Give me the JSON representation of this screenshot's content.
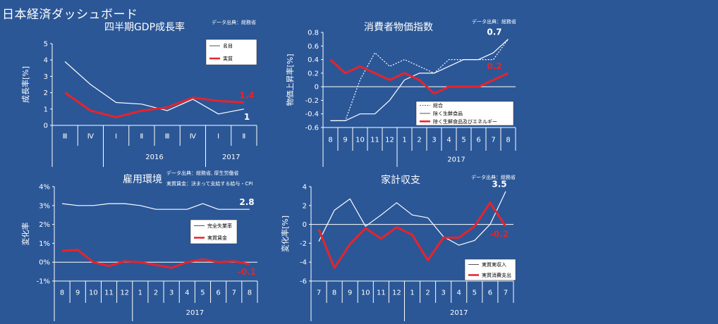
{
  "dashboard": {
    "title": "日本経済ダッシュボード"
  },
  "colors": {
    "background": "#2b5797",
    "series_white": "#ffffff",
    "series_red": "#e8232a"
  },
  "chart_data": [
    {
      "type": "line",
      "title": "四半期GDP成長率",
      "source": "データ出典：総務省",
      "source2": "",
      "ylabel": "成長率[%]",
      "categories": [
        "Ⅲ",
        "Ⅳ",
        "Ⅰ",
        "Ⅱ",
        "Ⅲ",
        "Ⅳ",
        "Ⅰ",
        "Ⅱ"
      ],
      "year_groups": [
        {
          "label": "2016",
          "start": 2,
          "end": 6
        },
        {
          "label": "2017",
          "start": 6,
          "end": 8
        }
      ],
      "ylim": [
        0,
        5
      ],
      "yticks": [
        0,
        1,
        2,
        3,
        4,
        5
      ],
      "ytick_labels": [
        "0",
        "1",
        "2",
        "3",
        "4",
        "5"
      ],
      "series": [
        {
          "name": "名目",
          "color": "#ffffff",
          "style": "solid",
          "width": 1.2,
          "values": [
            3.9,
            2.5,
            1.4,
            1.3,
            0.9,
            1.6,
            0.7,
            1.0
          ]
        },
        {
          "name": "実質",
          "color": "#e8232a",
          "style": "solid",
          "width": 3,
          "values": [
            2.0,
            0.9,
            0.5,
            0.9,
            1.1,
            1.7,
            1.5,
            1.4
          ]
        }
      ],
      "end_labels": [
        {
          "text": "1.4",
          "color": "#e8232a",
          "value": 1.4,
          "side": "above"
        },
        {
          "text": "1",
          "color": "#ffffff",
          "value": 1.0,
          "side": "below"
        }
      ],
      "legend_position": "top-right"
    },
    {
      "type": "line",
      "title": "消費者物価指数",
      "source": "データ出典：総務省",
      "source2": "",
      "ylabel": "物価上昇率[%]",
      "categories": [
        "8",
        "9",
        "10",
        "11",
        "12",
        "1",
        "2",
        "3",
        "4",
        "5",
        "6",
        "7",
        "8"
      ],
      "year_groups": [
        {
          "label": "2017",
          "start": 5,
          "end": 13
        }
      ],
      "ylim": [
        -0.6,
        0.8
      ],
      "yticks": [
        -0.6,
        -0.4,
        -0.2,
        0,
        0.2,
        0.4,
        0.6,
        0.8
      ],
      "ytick_labels": [
        "-0.6",
        "-0.4",
        "-0.2",
        "0",
        "0.2",
        "0.4",
        "0.6",
        "0.8"
      ],
      "series": [
        {
          "name": "総合",
          "color": "#ffffff",
          "style": "dotted",
          "width": 1.2,
          "values": [
            -0.5,
            -0.5,
            0.1,
            0.5,
            0.3,
            0.4,
            0.3,
            0.2,
            0.4,
            0.4,
            0.4,
            0.4,
            0.7
          ]
        },
        {
          "name": "除く生鮮食品",
          "color": "#ffffff",
          "style": "solid",
          "width": 1.2,
          "values": [
            -0.5,
            -0.5,
            -0.4,
            -0.4,
            -0.2,
            0.1,
            0.2,
            0.2,
            0.3,
            0.4,
            0.4,
            0.5,
            0.7
          ]
        },
        {
          "name": "除く生鮮食品及びエネルギー",
          "color": "#e8232a",
          "style": "solid",
          "width": 3,
          "values": [
            0.4,
            0.2,
            0.3,
            0.2,
            0.1,
            0.2,
            0.1,
            -0.1,
            0.0,
            0.0,
            0.0,
            0.1,
            0.2
          ]
        }
      ],
      "end_labels": [
        {
          "text": "0.7",
          "color": "#ffffff",
          "value": 0.7,
          "side": "above"
        },
        {
          "text": "0.2",
          "color": "#e8232a",
          "value": 0.2,
          "side": "above"
        }
      ],
      "legend_position": "bottom-right"
    },
    {
      "type": "line",
      "title": "雇用環境",
      "source": "データ出典：総務省, 厚生労働省",
      "source2": "実質賃金：決まって支給する給与・CPI",
      "ylabel": "変化率",
      "categories": [
        "8",
        "9",
        "10",
        "11",
        "12",
        "1",
        "2",
        "3",
        "4",
        "5",
        "6",
        "7",
        "8"
      ],
      "year_groups": [
        {
          "label": "2017",
          "start": 5,
          "end": 13
        }
      ],
      "ylim": [
        -1,
        4
      ],
      "yticks": [
        -1,
        0,
        1,
        2,
        3,
        4
      ],
      "ytick_labels": [
        "-1%",
        "0%",
        "1%",
        "2%",
        "3%",
        "4%"
      ],
      "series": [
        {
          "name": "完全失業率",
          "color": "#ffffff",
          "style": "solid",
          "width": 1.2,
          "values": [
            3.1,
            3.0,
            3.0,
            3.1,
            3.1,
            3.0,
            2.8,
            2.8,
            2.8,
            3.1,
            2.8,
            2.8,
            2.8
          ]
        },
        {
          "name": "実質賃金",
          "color": "#e8232a",
          "style": "solid",
          "width": 3,
          "values": [
            0.6,
            0.65,
            0.0,
            -0.2,
            0.05,
            0.0,
            -0.15,
            -0.3,
            0.0,
            0.15,
            0.0,
            0.05,
            -0.1
          ]
        }
      ],
      "end_labels": [
        {
          "text": "2.8",
          "color": "#ffffff",
          "value": 2.8,
          "side": "above"
        },
        {
          "text": "-0.1",
          "color": "#e8232a",
          "value": -0.1,
          "side": "below"
        }
      ],
      "legend_position": "right"
    },
    {
      "type": "line",
      "title": "家計収支",
      "source": "データ出典：総務省",
      "source2": "",
      "ylabel": "変化率[%]",
      "categories": [
        "7",
        "8",
        "9",
        "10",
        "11",
        "12",
        "1",
        "2",
        "3",
        "4",
        "5",
        "6",
        "7"
      ],
      "year_groups": [
        {
          "label": "2017",
          "start": 6,
          "end": 13
        }
      ],
      "ylim": [
        -6,
        4
      ],
      "yticks": [
        -6,
        -4,
        -2,
        0,
        2,
        4
      ],
      "ytick_labels": [
        "-6",
        "-4",
        "-2",
        "0",
        "2",
        "4"
      ],
      "series": [
        {
          "name": "実質実収入",
          "color": "#ffffff",
          "style": "solid",
          "width": 1.2,
          "values": [
            -1.8,
            1.5,
            2.7,
            -0.2,
            1.0,
            2.3,
            1.0,
            0.7,
            -1.3,
            -2.2,
            -1.7,
            0.0,
            3.5
          ]
        },
        {
          "name": "実質消費支出",
          "color": "#e8232a",
          "style": "solid",
          "width": 3,
          "values": [
            -0.5,
            -4.6,
            -2.1,
            -0.4,
            -1.5,
            -0.3,
            -1.1,
            -3.8,
            -1.4,
            -1.4,
            -0.2,
            2.3,
            -0.2
          ]
        }
      ],
      "end_labels": [
        {
          "text": "3.5",
          "color": "#ffffff",
          "value": 3.5,
          "side": "above"
        },
        {
          "text": "-0.2",
          "color": "#e8232a",
          "value": -0.2,
          "side": "below"
        }
      ],
      "legend_position": "bottom-right"
    }
  ]
}
